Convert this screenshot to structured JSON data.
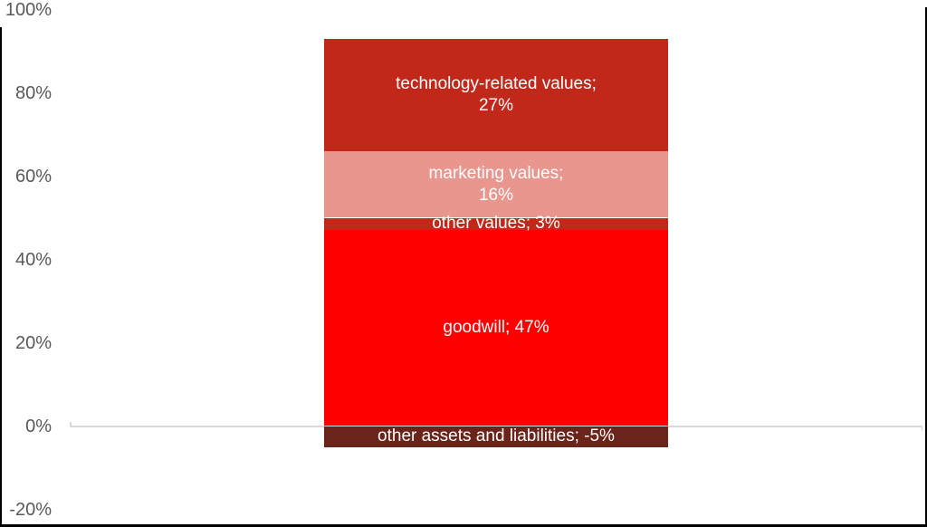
{
  "page": {
    "background_color": "#FFFFFF",
    "border_color": "#000000"
  },
  "chart_data": {
    "type": "bar",
    "subtype": "stacked-column",
    "title": "",
    "xlabel": "",
    "ylabel": "",
    "categories": [
      ""
    ],
    "series": [
      {
        "name": "technology-related values",
        "value": 27,
        "label": "technology-related values;\n27%",
        "color": "#C2281A"
      },
      {
        "name": "marketing values",
        "value": 16,
        "label": "marketing values;\n16%",
        "color": "#E9968F"
      },
      {
        "name": "other values",
        "value": 3,
        "label": "other values; 3%",
        "color": "#C2281A"
      },
      {
        "name": "goodwill",
        "value": 47,
        "label": "goodwill; 47%",
        "color": "#FE0000"
      },
      {
        "name": "other assets and liabilities",
        "value": -5,
        "label": "other assets and liabilities; -5%",
        "color": "#6A241A"
      }
    ],
    "data_label_color": "#FFFFFF",
    "ylim": [
      -20,
      100
    ],
    "yticks": [
      {
        "label": "100%",
        "value": 100
      },
      {
        "label": "80%",
        "value": 80
      },
      {
        "label": "60%",
        "value": 60
      },
      {
        "label": "40%",
        "value": 40
      },
      {
        "label": "20%",
        "value": 20
      },
      {
        "label": "0%",
        "value": 0
      },
      {
        "label": "-20%",
        "value": -20
      }
    ],
    "axis_label_color": "#595959",
    "zero_line_color": "#D9D9D9",
    "grid": "zero-line-only",
    "legend": "none"
  }
}
